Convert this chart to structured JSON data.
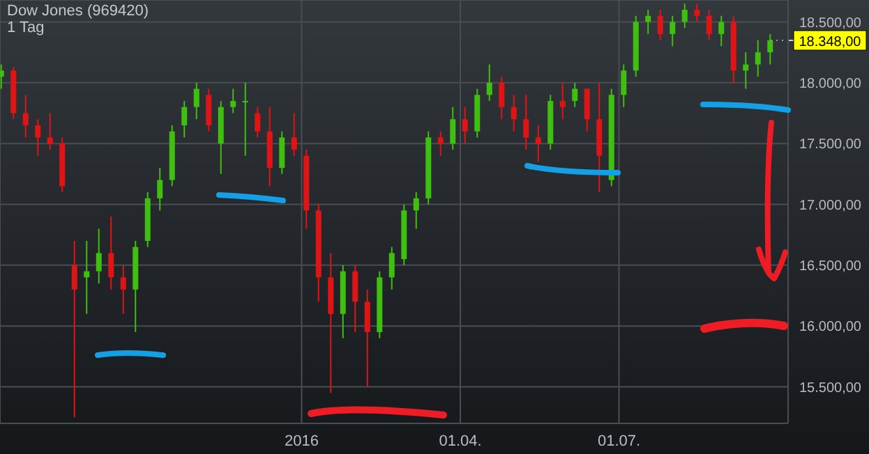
{
  "chart_data": {
    "type": "candlestick",
    "title": "Dow Jones (969420)",
    "subtitle": "1 Tag",
    "x": [
      "2015-07-13",
      "2015-07-20",
      "2015-07-27",
      "2015-08-03",
      "2015-08-10",
      "2015-08-17",
      "2015-08-24",
      "2015-08-31",
      "2015-09-07",
      "2015-09-14",
      "2015-09-21",
      "2015-09-28",
      "2015-10-05",
      "2015-10-12",
      "2015-10-19",
      "2015-10-26",
      "2015-11-02",
      "2015-11-09",
      "2015-11-16",
      "2015-11-23",
      "2015-11-30",
      "2015-12-07",
      "2015-12-14",
      "2015-12-21",
      "2015-12-28",
      "2016-01-04",
      "2016-01-11",
      "2016-01-18",
      "2016-01-25",
      "2016-02-01",
      "2016-02-08",
      "2016-02-15",
      "2016-02-22",
      "2016-02-29",
      "2016-03-07",
      "2016-03-14",
      "2016-03-21",
      "2016-03-28",
      "2016-04-04",
      "2016-04-11",
      "2016-04-18",
      "2016-04-25",
      "2016-05-02",
      "2016-05-09",
      "2016-05-16",
      "2016-05-23",
      "2016-05-30",
      "2016-06-06",
      "2016-06-13",
      "2016-06-20",
      "2016-06-27",
      "2016-07-04",
      "2016-07-11",
      "2016-07-18",
      "2016-07-25",
      "2016-08-01",
      "2016-08-08",
      "2016-08-15",
      "2016-08-22",
      "2016-08-29",
      "2016-09-05",
      "2016-09-12",
      "2016-09-19",
      "2016-09-26"
    ],
    "ohlc": [
      [
        18050,
        18150,
        17950,
        18100
      ],
      [
        18100,
        18130,
        17700,
        17750
      ],
      [
        17750,
        17900,
        17550,
        17650
      ],
      [
        17650,
        17700,
        17400,
        17550
      ],
      [
        17550,
        17750,
        17450,
        17500
      ],
      [
        17500,
        17550,
        17100,
        17150
      ],
      [
        16500,
        16700,
        15250,
        16300
      ],
      [
        16400,
        16700,
        16100,
        16450
      ],
      [
        16450,
        16800,
        16350,
        16600
      ],
      [
        16600,
        16900,
        16300,
        16400
      ],
      [
        16400,
        16500,
        16100,
        16300
      ],
      [
        16300,
        16700,
        15950,
        16650
      ],
      [
        16700,
        17100,
        16650,
        17050
      ],
      [
        17050,
        17300,
        16950,
        17200
      ],
      [
        17200,
        17650,
        17150,
        17600
      ],
      [
        17650,
        17850,
        17550,
        17800
      ],
      [
        17800,
        18000,
        17700,
        17950
      ],
      [
        17900,
        17950,
        17600,
        17650
      ],
      [
        17500,
        17850,
        17250,
        17800
      ],
      [
        17800,
        17950,
        17750,
        17850
      ],
      [
        17850,
        18000,
        17400,
        17850
      ],
      [
        17750,
        17800,
        17550,
        17600
      ],
      [
        17600,
        17800,
        17150,
        17300
      ],
      [
        17300,
        17600,
        17250,
        17550
      ],
      [
        17550,
        17750,
        17400,
        17450
      ],
      [
        17400,
        17450,
        16800,
        16950
      ],
      [
        16950,
        17000,
        16200,
        16400
      ],
      [
        16400,
        16600,
        15450,
        16100
      ],
      [
        16100,
        16500,
        15900,
        16450
      ],
      [
        16450,
        16500,
        15950,
        16200
      ],
      [
        16200,
        16300,
        15500,
        15950
      ],
      [
        15950,
        16450,
        15900,
        16400
      ],
      [
        16400,
        16650,
        16300,
        16600
      ],
      [
        16550,
        17000,
        16500,
        16950
      ],
      [
        16950,
        17100,
        16800,
        17050
      ],
      [
        17050,
        17600,
        17000,
        17550
      ],
      [
        17550,
        17600,
        17400,
        17500
      ],
      [
        17500,
        17800,
        17450,
        17700
      ],
      [
        17700,
        17800,
        17500,
        17600
      ],
      [
        17600,
        17950,
        17550,
        17900
      ],
      [
        17900,
        18150,
        17850,
        18000
      ],
      [
        18000,
        18050,
        17700,
        17800
      ],
      [
        17800,
        17900,
        17600,
        17700
      ],
      [
        17700,
        17900,
        17450,
        17550
      ],
      [
        17550,
        17650,
        17350,
        17500
      ],
      [
        17500,
        17900,
        17450,
        17850
      ],
      [
        17850,
        18000,
        17700,
        17800
      ],
      [
        17850,
        18000,
        17800,
        17950
      ],
      [
        17950,
        17950,
        17600,
        17700
      ],
      [
        17700,
        18000,
        17100,
        17400
      ],
      [
        17200,
        17950,
        17150,
        17900
      ],
      [
        17900,
        18150,
        17800,
        18100
      ],
      [
        18100,
        18550,
        18050,
        18500
      ],
      [
        18500,
        18600,
        18400,
        18550
      ],
      [
        18550,
        18600,
        18350,
        18400
      ],
      [
        18400,
        18550,
        18300,
        18500
      ],
      [
        18500,
        18650,
        18450,
        18600
      ],
      [
        18600,
        18650,
        18500,
        18550
      ],
      [
        18550,
        18600,
        18350,
        18400
      ],
      [
        18400,
        18550,
        18300,
        18500
      ],
      [
        18500,
        18550,
        18000,
        18100
      ],
      [
        18100,
        18250,
        17950,
        18150
      ],
      [
        18150,
        18350,
        18050,
        18250
      ],
      [
        18250,
        18400,
        18150,
        18348
      ]
    ],
    "colors": [
      "#3fbf10",
      "#e01414",
      "#e01414",
      "#e01414",
      "#e01414",
      "#e01414",
      "#e01414",
      "#3fbf10",
      "#3fbf10",
      "#e01414",
      "#e01414",
      "#3fbf10",
      "#3fbf10",
      "#3fbf10",
      "#3fbf10",
      "#3fbf10",
      "#3fbf10",
      "#e01414",
      "#3fbf10",
      "#3fbf10",
      "#3fbf10",
      "#e01414",
      "#e01414",
      "#3fbf10",
      "#e01414",
      "#e01414",
      "#e01414",
      "#e01414",
      "#3fbf10",
      "#e01414",
      "#e01414",
      "#3fbf10",
      "#3fbf10",
      "#3fbf10",
      "#3fbf10",
      "#3fbf10",
      "#e01414",
      "#3fbf10",
      "#e01414",
      "#3fbf10",
      "#3fbf10",
      "#e01414",
      "#e01414",
      "#e01414",
      "#e01414",
      "#3fbf10",
      "#e01414",
      "#3fbf10",
      "#e01414",
      "#e01414",
      "#3fbf10",
      "#3fbf10",
      "#3fbf10",
      "#3fbf10",
      "#e01414",
      "#3fbf10",
      "#3fbf10",
      "#e01414",
      "#e01414",
      "#3fbf10",
      "#e01414",
      "#3fbf10",
      "#3fbf10",
      "#3fbf10"
    ],
    "xlim": [
      "2015-07-12",
      "2016-10-06"
    ],
    "xticks": [
      {
        "value": "2016-01-01",
        "label": "2016"
      },
      {
        "value": "2016-04-01",
        "label": "01.04."
      },
      {
        "value": "2016-07-01",
        "label": "01.07."
      }
    ],
    "ylim": [
      15200,
      18680
    ],
    "yticks": [
      {
        "value": 15500,
        "label": "15.500,00"
      },
      {
        "value": 16000,
        "label": "16.000,00"
      },
      {
        "value": 16500,
        "label": "16.500,00"
      },
      {
        "value": 17000,
        "label": "17.000,00"
      },
      {
        "value": 17500,
        "label": "17.500,00"
      },
      {
        "value": 18000,
        "label": "18.000,00"
      },
      {
        "value": 18500,
        "label": "18.500,00"
      }
    ],
    "annotations": [
      {
        "text": "18.348,00",
        "x": "2016-09-26",
        "y": 18348
      }
    ],
    "grid": true
  }
}
